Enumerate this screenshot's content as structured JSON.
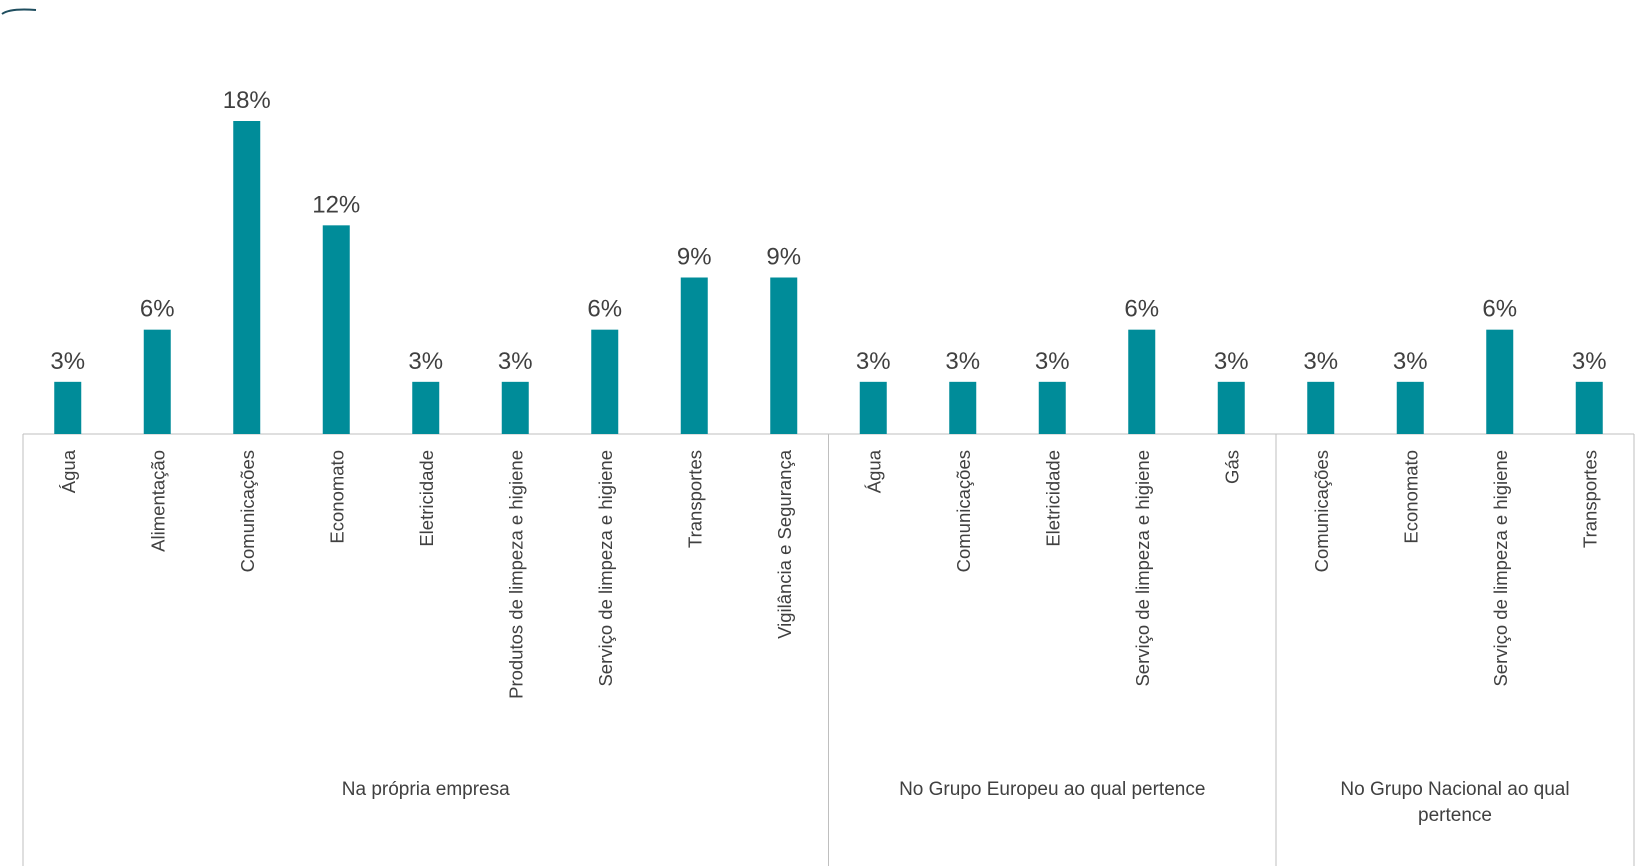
{
  "colors": {
    "bar": "#008C99",
    "axis": "#BFBFBF",
    "text": "#404040",
    "corner": "#1F4E5F"
  },
  "chart_data": {
    "type": "bar",
    "title": "",
    "xlabel": "",
    "ylabel": "",
    "ylim": [
      0,
      18
    ],
    "grid": false,
    "legend": "none",
    "groups": [
      {
        "label": "Na própria empresa",
        "categories": [
          "Água",
          "Alimentação",
          "Comunicações",
          "Economato",
          "Eletricidade",
          "Produtos de limpeza e higiene",
          "Serviço de limpeza e higiene",
          "Transportes",
          "Vigilância e Segurança"
        ],
        "values": [
          3,
          6,
          18,
          12,
          3,
          3,
          6,
          9,
          9
        ],
        "labels": [
          "3%",
          "6%",
          "18%",
          "12%",
          "3%",
          "3%",
          "6%",
          "9%",
          "9%"
        ]
      },
      {
        "label": "No Grupo Europeu ao qual pertence",
        "categories": [
          "Água",
          "Comunicações",
          "Eletricidade",
          "Serviço de limpeza e higiene",
          "Gás"
        ],
        "values": [
          3,
          3,
          3,
          6,
          3
        ],
        "labels": [
          "3%",
          "3%",
          "3%",
          "6%",
          "3%"
        ]
      },
      {
        "label": "No Grupo Nacional ao qual pertence",
        "label_lines": [
          "No Grupo Nacional ao qual",
          "pertence"
        ],
        "categories": [
          "Comunicações",
          "Economato",
          "Serviço de limpeza e higiene",
          "Transportes"
        ],
        "values": [
          3,
          3,
          6,
          3
        ],
        "labels": [
          "3%",
          "3%",
          "6%",
          "3%"
        ]
      }
    ]
  }
}
